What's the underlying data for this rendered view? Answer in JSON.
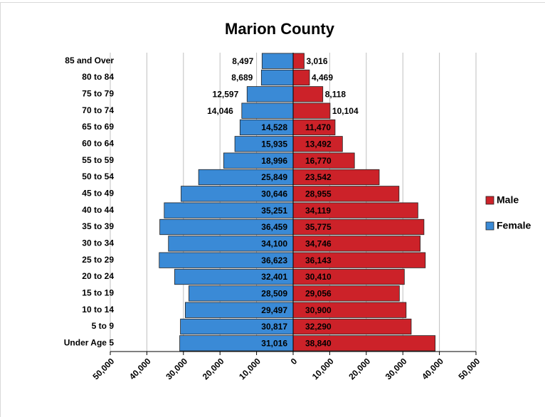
{
  "chart_data": {
    "type": "bar",
    "orientation": "horizontal",
    "title": "Marion County",
    "categories": [
      "85 and Over",
      "80 to 84",
      "75 to 79",
      "70 to 74",
      "65 to 69",
      "60 to 64",
      "55 to 59",
      "50 to 54",
      "45 to 49",
      "40 to 44",
      "35 to 39",
      "30 to 34",
      "25 to 29",
      "20 to 24",
      "15 to 19",
      "10 to 14",
      "5 to 9",
      "Under Age 5"
    ],
    "series": [
      {
        "name": "Male",
        "color": "#cc2229",
        "values": [
          3016,
          4469,
          8118,
          10104,
          11470,
          13492,
          16770,
          23542,
          28955,
          34119,
          35775,
          34746,
          36143,
          30410,
          29056,
          30900,
          32290,
          38840
        ],
        "value_labels": [
          "3,016",
          "4,469",
          "8,118",
          "10,104",
          "11,470",
          "13,492",
          "16,770",
          "23,542",
          "28,955",
          "34,119",
          "35,775",
          "34,746",
          "36,143",
          "30,410",
          "29,056",
          "30,900",
          "32,290",
          "38,840"
        ]
      },
      {
        "name": "Female",
        "color": "#3a8ad6",
        "values": [
          8497,
          8689,
          12597,
          14046,
          14528,
          15935,
          18996,
          25849,
          30646,
          35251,
          36459,
          34100,
          36623,
          32401,
          28509,
          29497,
          30817,
          31016
        ],
        "value_labels": [
          "8,497",
          "8,689",
          "12,597",
          "14,046",
          "14,528",
          "15,935",
          "18,996",
          "25,849",
          "30,646",
          "35,251",
          "36,459",
          "34,100",
          "36,623",
          "32,401",
          "28,509",
          "29,497",
          "30,817",
          "31,016"
        ]
      }
    ],
    "xlim": [
      -50000,
      50000
    ],
    "xticks": [
      {
        "value": -50000,
        "label": "50,000"
      },
      {
        "value": -40000,
        "label": "40,000"
      },
      {
        "value": -30000,
        "label": "30,000"
      },
      {
        "value": -20000,
        "label": "20,000"
      },
      {
        "value": -10000,
        "label": "10,000"
      },
      0,
      {
        "value": 10000,
        "label": "10,000"
      },
      {
        "value": 20000,
        "label": "20,000"
      },
      {
        "value": 30000,
        "label": "30,000"
      },
      {
        "value": 40000,
        "label": "40,000"
      },
      {
        "value": 50000,
        "label": "50,000"
      }
    ],
    "grid": true,
    "legend": "right"
  }
}
